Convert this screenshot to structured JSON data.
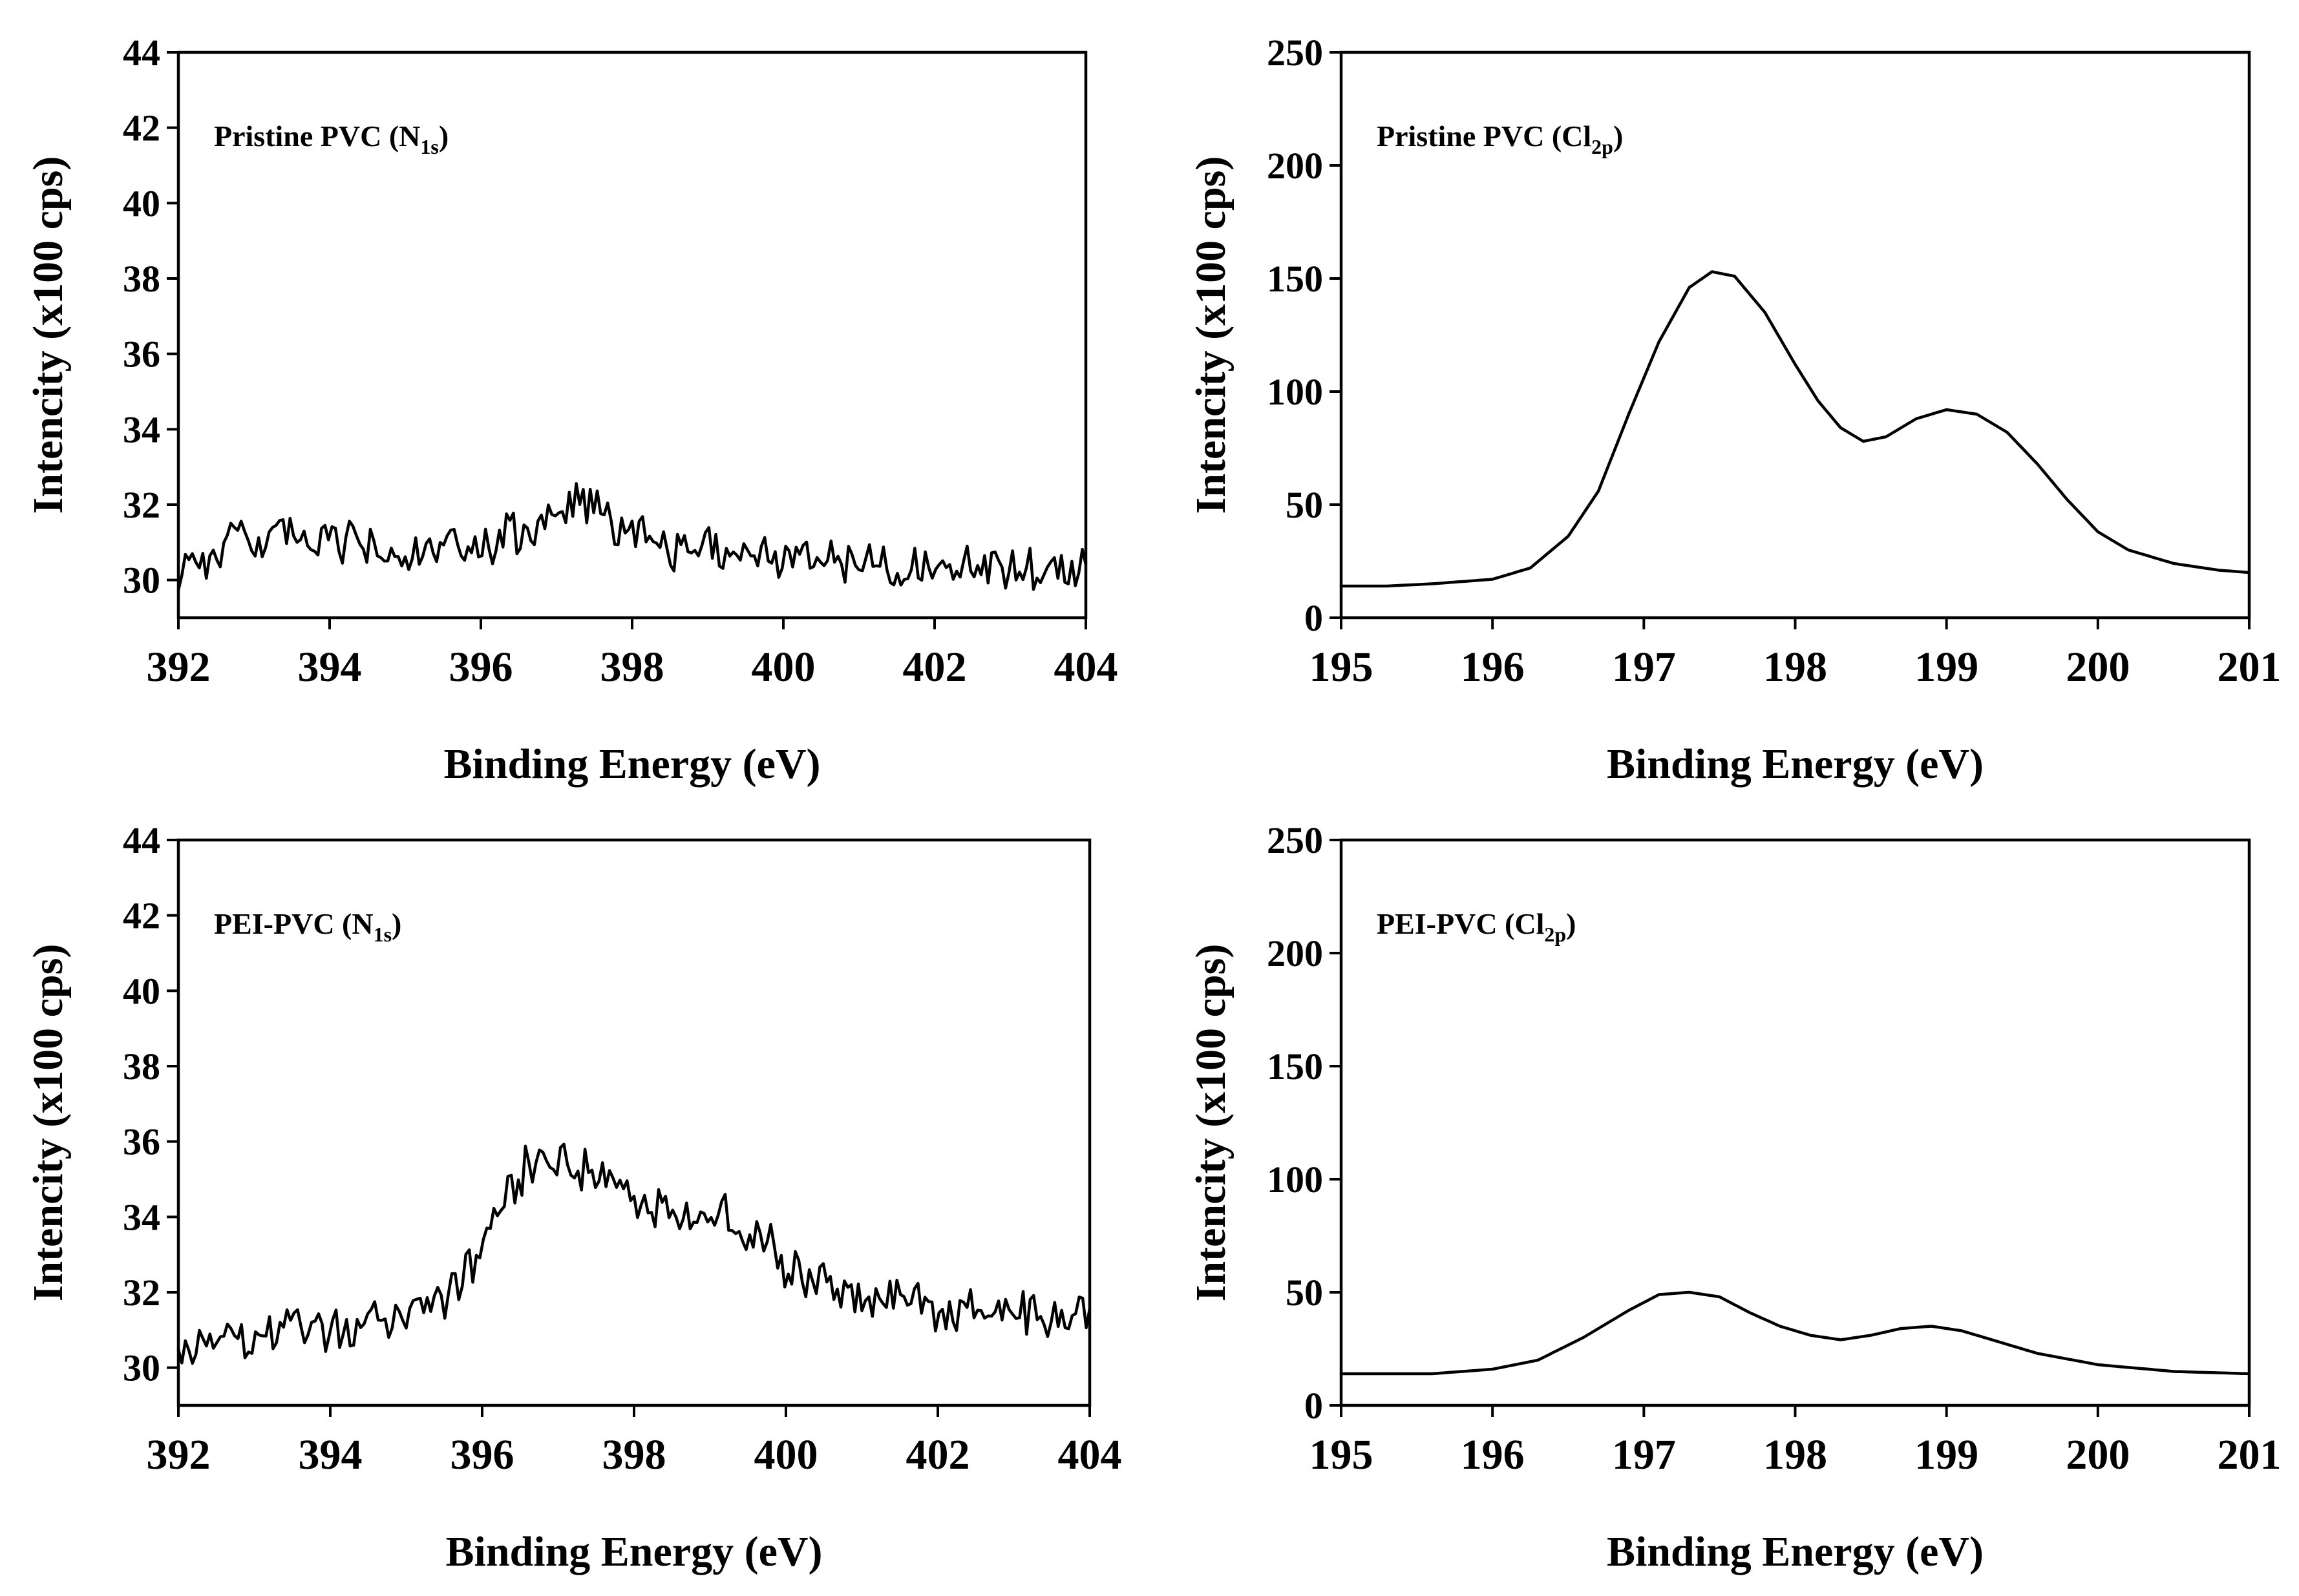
{
  "chart_data": [
    {
      "type": "line",
      "annotation": {
        "main": "Pristine PVC (N",
        "sub": "1s",
        "close": ")"
      },
      "xlabel": "Binding Energy (eV)",
      "ylabel": "Intencity (x100 cps)",
      "xlim": [
        392,
        404
      ],
      "ylim": [
        29,
        44
      ],
      "xticks": [
        "392",
        "394",
        "396",
        "398",
        "400",
        "402",
        "404"
      ],
      "yticks": [
        "30",
        "32",
        "34",
        "36",
        "38",
        "40",
        "42",
        "44"
      ],
      "noisy": true,
      "series": [
        {
          "x": [
            392,
            392.5,
            393,
            393.5,
            394,
            394.5,
            395,
            395.5,
            396,
            396.5,
            397,
            397.3,
            397.6,
            398,
            398.5,
            399,
            399.5,
            400,
            400.5,
            401,
            401.5,
            402,
            402.5,
            403,
            403.5,
            404
          ],
          "y": [
            30.3,
            30.8,
            31.1,
            31.1,
            31.0,
            30.9,
            30.6,
            30.7,
            30.9,
            31.2,
            31.7,
            31.9,
            31.7,
            31.4,
            30.9,
            30.8,
            30.7,
            30.6,
            30.6,
            30.5,
            30.4,
            30.4,
            30.4,
            30.3,
            30.3,
            30.3
          ]
        }
      ]
    },
    {
      "type": "line",
      "annotation": {
        "main": "Pristine PVC (Cl",
        "sub": "2p",
        "close": ")"
      },
      "xlabel": "Binding Energy (eV)",
      "ylabel": "Intencity (x100 cps)",
      "xlim": [
        195,
        201
      ],
      "ylim": [
        0,
        250
      ],
      "xticks": [
        "195",
        "196",
        "197",
        "198",
        "199",
        "200",
        "201"
      ],
      "yticks": [
        "0",
        "50",
        "100",
        "150",
        "200",
        "250"
      ],
      "noisy": false,
      "series": [
        {
          "x": [
            195,
            195.3,
            195.6,
            196,
            196.25,
            196.5,
            196.7,
            196.9,
            197.1,
            197.3,
            197.45,
            197.6,
            197.8,
            198,
            198.15,
            198.3,
            198.45,
            198.6,
            198.8,
            199,
            199.2,
            199.4,
            199.6,
            199.8,
            200,
            200.2,
            200.5,
            200.8,
            201
          ],
          "y": [
            14,
            14,
            15,
            17,
            22,
            36,
            56,
            90,
            122,
            146,
            153,
            151,
            135,
            112,
            96,
            84,
            78,
            80,
            88,
            92,
            90,
            82,
            68,
            52,
            38,
            30,
            24,
            21,
            20
          ]
        }
      ]
    },
    {
      "type": "line",
      "annotation": {
        "main": "PEI-PVC (N",
        "sub": "1s",
        "close": ")"
      },
      "xlabel": "Binding Energy (eV)",
      "ylabel": "Intencity (x100 cps)",
      "xlim": [
        392,
        404
      ],
      "ylim": [
        29,
        44
      ],
      "xticks": [
        "392",
        "394",
        "396",
        "398",
        "400",
        "402",
        "404"
      ],
      "yticks": [
        "30",
        "32",
        "34",
        "36",
        "38",
        "40",
        "42",
        "44"
      ],
      "noisy": true,
      "series": [
        {
          "x": [
            392,
            392.5,
            393,
            393.5,
            394,
            394.5,
            395,
            395.5,
            396,
            396.3,
            396.6,
            397,
            397.4,
            397.8,
            398.2,
            398.6,
            399,
            399.4,
            399.8,
            400,
            400.5,
            401,
            401.5,
            402,
            402.5,
            403,
            403.5,
            404
          ],
          "y": [
            30.4,
            30.6,
            30.8,
            31.0,
            31.0,
            31.2,
            31.4,
            31.8,
            33.0,
            34.6,
            35.3,
            35.5,
            35.2,
            34.8,
            34.2,
            34.2,
            34.1,
            33.8,
            33.2,
            32.5,
            32.2,
            32.0,
            31.8,
            31.6,
            31.5,
            31.4,
            31.5,
            31.6
          ]
        }
      ]
    },
    {
      "type": "line",
      "annotation": {
        "main": "PEI-PVC (Cl",
        "sub": "2p",
        "close": ")"
      },
      "xlabel": "Binding Energy (eV)",
      "ylabel": "Intencity (x100 cps)",
      "xlim": [
        195,
        201
      ],
      "ylim": [
        0,
        250
      ],
      "xticks": [
        "195",
        "196",
        "197",
        "198",
        "199",
        "200",
        "201"
      ],
      "yticks": [
        "0",
        "50",
        "100",
        "150",
        "200",
        "250"
      ],
      "noisy": false,
      "series": [
        {
          "x": [
            195,
            195.3,
            195.6,
            196,
            196.3,
            196.6,
            196.9,
            197.1,
            197.3,
            197.5,
            197.7,
            197.9,
            198.1,
            198.3,
            198.5,
            198.7,
            198.9,
            199.1,
            199.3,
            199.6,
            200,
            200.5,
            201
          ],
          "y": [
            14,
            14,
            14,
            16,
            20,
            30,
            42,
            49,
            50,
            48,
            41,
            35,
            31,
            29,
            31,
            34,
            35,
            33,
            29,
            23,
            18,
            15,
            14
          ]
        }
      ]
    }
  ]
}
